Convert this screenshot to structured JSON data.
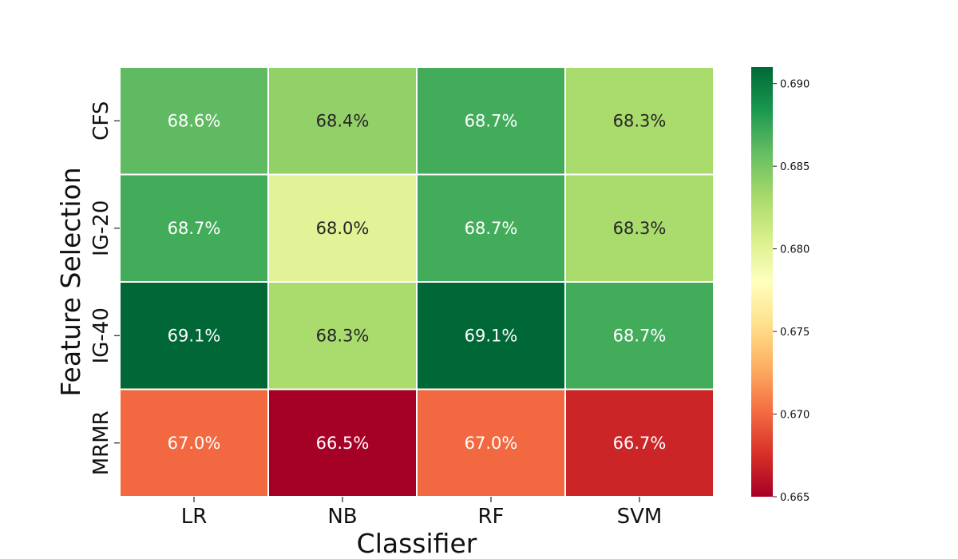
{
  "chart_data": {
    "type": "heatmap",
    "title": "",
    "xlabel": "Classifier",
    "ylabel": "Feature Selection",
    "x_categories": [
      "LR",
      "NB",
      "RF",
      "SVM"
    ],
    "y_categories": [
      "CFS",
      "IG-20",
      "IG-40",
      "MRMR"
    ],
    "values": [
      [
        0.686,
        0.684,
        0.687,
        0.683
      ],
      [
        0.687,
        0.68,
        0.687,
        0.683
      ],
      [
        0.691,
        0.683,
        0.691,
        0.687
      ],
      [
        0.67,
        0.665,
        0.67,
        0.667
      ]
    ],
    "cell_labels": [
      [
        "68.6%",
        "68.4%",
        "68.7%",
        "68.3%"
      ],
      [
        "68.7%",
        "68.0%",
        "68.7%",
        "68.3%"
      ],
      [
        "69.1%",
        "68.3%",
        "69.1%",
        "68.7%"
      ],
      [
        "67.0%",
        "66.5%",
        "67.0%",
        "66.7%"
      ]
    ],
    "colormap": "RdYlGn",
    "vmin": 0.665,
    "vmax": 0.691,
    "colorbar_ticks": [
      "0.665",
      "0.670",
      "0.675",
      "0.680",
      "0.685",
      "0.690"
    ],
    "grid": false,
    "colorbar_position": "right"
  }
}
